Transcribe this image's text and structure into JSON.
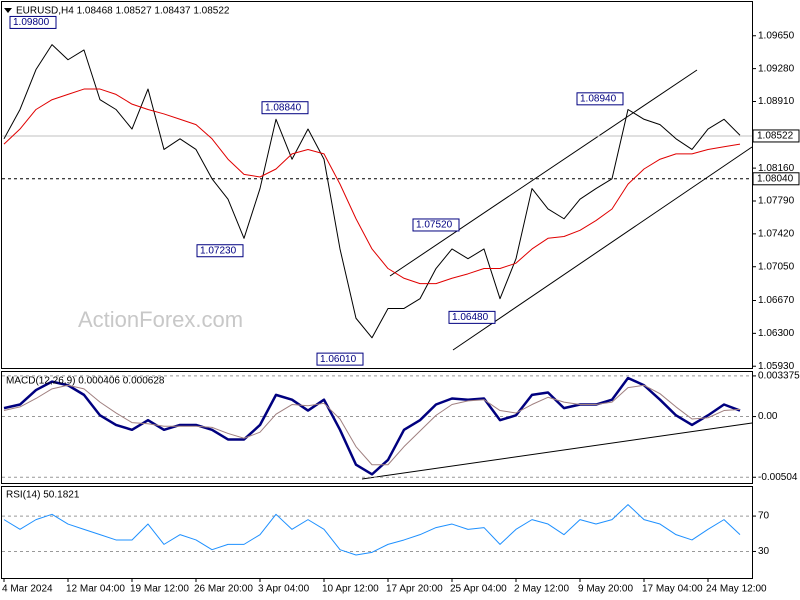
{
  "chart_data": [
    {
      "type": "line",
      "title": "EURUSD,H4  1.08468 1.08527 1.08437 1.08522",
      "watermark": "ActionForex.com",
      "ylim": [
        1.0591,
        1.1003
      ],
      "yticks": [
        {
          "value": 1.0965,
          "label": "1.09650"
        },
        {
          "value": 1.0928,
          "label": "1.09280"
        },
        {
          "value": 1.0891,
          "label": "1.08910"
        },
        {
          "value": 1.0816,
          "label": "1.08160"
        },
        {
          "value": 1.0779,
          "label": "1.07790"
        },
        {
          "value": 1.0742,
          "label": "1.07420"
        },
        {
          "value": 1.0705,
          "label": "1.07050"
        },
        {
          "value": 1.0667,
          "label": "1.06670"
        },
        {
          "value": 1.063,
          "label": "1.06300"
        },
        {
          "value": 1.0593,
          "label": "1.05930"
        }
      ],
      "hlines": [
        {
          "value": 1.08522,
          "label": "1.08522",
          "style": "solid",
          "color": "#c0c0c0"
        },
        {
          "value": 1.0804,
          "label": "1.08040",
          "style": "dashed",
          "color": "#000000"
        }
      ],
      "annotations": [
        {
          "value": 1.098,
          "label": "1.09800"
        },
        {
          "value": 1.0884,
          "label": "1.08840"
        },
        {
          "value": 1.0723,
          "label": "1.07230"
        },
        {
          "value": 1.0752,
          "label": "1.07520"
        },
        {
          "value": 1.0648,
          "label": "1.06480"
        },
        {
          "value": 1.0601,
          "label": "1.06010"
        },
        {
          "value": 1.0894,
          "label": "1.08940"
        }
      ],
      "series": [
        {
          "color": "#000000",
          "width": 1,
          "values": [
            1.0849,
            1.0882,
            1.0927,
            1.0955,
            1.0938,
            1.0949,
            1.0893,
            1.0882,
            1.086,
            1.0905,
            1.0837,
            1.0849,
            1.0837,
            1.0804,
            1.0781,
            1.0737,
            1.0793,
            1.0871,
            1.0826,
            1.086,
            1.0826,
            1.0725,
            1.0647,
            1.0625,
            1.0658,
            1.0658,
            1.0669,
            1.0703,
            1.0725,
            1.0714,
            1.0725,
            1.0669,
            1.0714,
            1.0793,
            1.077,
            1.0759,
            1.0781,
            1.0793,
            1.0804,
            1.0882,
            1.0871,
            1.0865,
            1.0849,
            1.0837,
            1.086,
            1.0871,
            1.0853
          ]
        },
        {
          "color": "#e00000",
          "width": 1,
          "values": [
            1.0843,
            1.086,
            1.0882,
            1.0893,
            1.0899,
            1.0905,
            1.0905,
            1.0899,
            1.0888,
            1.0882,
            1.0877,
            1.0871,
            1.0865,
            1.0849,
            1.0826,
            1.0809,
            1.0806,
            1.0815,
            1.0832,
            1.0837,
            1.0832,
            1.0798,
            1.0759,
            1.0725,
            1.0703,
            1.0692,
            1.0686,
            1.0686,
            1.0692,
            1.0697,
            1.0703,
            1.0703,
            1.0709,
            1.0725,
            1.0737,
            1.0739,
            1.0746,
            1.0757,
            1.077,
            1.0798,
            1.0815,
            1.0826,
            1.0832,
            1.0832,
            1.0837,
            1.084,
            1.0843
          ]
        }
      ]
    },
    {
      "type": "line",
      "title": "MACD(12,26,9) 0.000406 0.000628",
      "ylim": [
        -0.0056,
        0.0037
      ],
      "yticks": [
        0.003375,
        {
          "value": 0,
          "label": "0.00"
        },
        -0.00504
      ],
      "series": [
        {
          "color": "#00007f",
          "width": 2.5,
          "values": [
            0.0007,
            0.001,
            0.0022,
            0.0029,
            0.0026,
            0.0018,
            0.0001,
            -0.0007,
            -0.0011,
            -0.0003,
            -0.0011,
            -0.0007,
            -0.0007,
            -0.0011,
            -0.0019,
            -0.0019,
            -0.0007,
            0.0018,
            0.0014,
            0.0005,
            0.0014,
            -0.0011,
            -0.004,
            -0.0048,
            -0.0036,
            -0.0011,
            -0.0003,
            0.001,
            0.0015,
            0.0014,
            0.0015,
            -0.0003,
            0.0001,
            0.0018,
            0.002,
            0.0007,
            0.001,
            0.001,
            0.0014,
            0.0032,
            0.0026,
            0.0014,
            0.0001,
            -0.0007,
            0.0001,
            0.001,
            0.0005
          ]
        },
        {
          "color": "#a08080",
          "width": 1,
          "values": [
            0.0005,
            0.0008,
            0.0015,
            0.0023,
            0.0026,
            0.0023,
            0.0012,
            0.0003,
            -0.0005,
            -0.0006,
            -0.0008,
            -0.0008,
            -0.0008,
            -0.0009,
            -0.0014,
            -0.0018,
            -0.0013,
            0.0002,
            0.001,
            0.0009,
            0.0011,
            -0.0002,
            -0.0025,
            -0.004,
            -0.004,
            -0.0025,
            -0.0012,
            0.0001,
            0.001,
            0.0013,
            0.0014,
            0.0005,
            0.0003,
            0.001,
            0.0016,
            0.0012,
            0.001,
            0.001,
            0.0012,
            0.0024,
            0.0026,
            0.0019,
            0.0008,
            -0.0002,
            -0.0001,
            0.0005,
            0.0006
          ]
        }
      ]
    },
    {
      "type": "line",
      "title": "RSI(14) 50.1821",
      "ylim": [
        0,
        104
      ],
      "yticks": [
        70,
        30
      ],
      "categories": [
        "4 Mar 2024",
        null,
        null,
        null,
        "12 Mar 04:00",
        null,
        null,
        null,
        "19 Mar 12:00",
        null,
        null,
        null,
        "26 Mar 20:00",
        null,
        null,
        null,
        "3 Apr 04:00",
        null,
        null,
        null,
        "10 Apr 12:00",
        null,
        null,
        null,
        "17 Apr 20:00",
        null,
        null,
        null,
        "25 Apr 04:00",
        null,
        null,
        null,
        "2 May 12:00",
        null,
        null,
        null,
        "9 May 20:00",
        null,
        null,
        null,
        "17 May 04:00",
        null,
        null,
        null,
        "24 May 12:00",
        null,
        null
      ],
      "series": [
        {
          "color": "#1e90ff",
          "width": 1,
          "values": [
            66,
            55,
            66,
            72,
            61,
            55,
            49,
            43,
            43,
            61,
            38,
            49,
            43,
            32,
            38,
            38,
            49,
            72,
            55,
            66,
            55,
            32,
            26,
            29,
            38,
            43,
            49,
            57,
            61,
            55,
            57,
            38,
            55,
            66,
            61,
            49,
            66,
            61,
            66,
            83,
            66,
            61,
            49,
            43,
            55,
            66,
            49
          ]
        }
      ]
    }
  ]
}
